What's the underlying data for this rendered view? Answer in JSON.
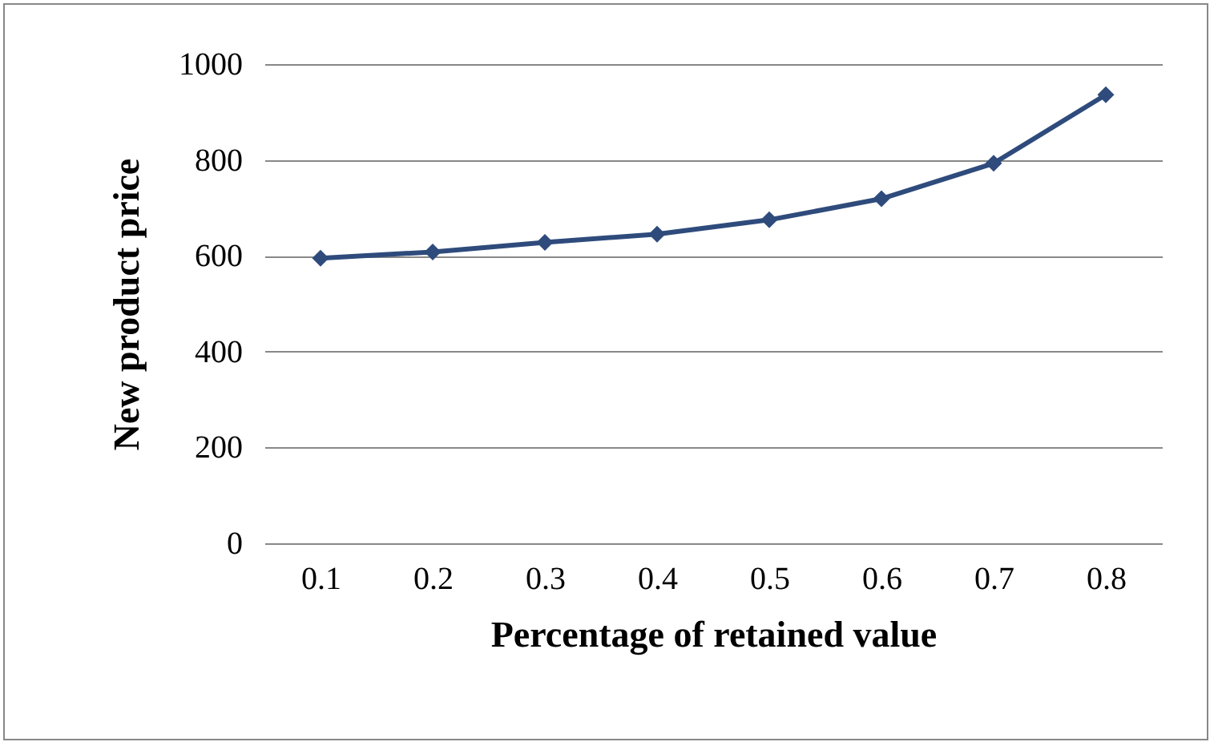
{
  "chart_data": {
    "type": "line",
    "xlabel": "Percentage of retained value",
    "ylabel": "New product price",
    "categories": [
      "0.1",
      "0.2",
      "0.3",
      "0.4",
      "0.5",
      "0.6",
      "0.7",
      "0.8"
    ],
    "series": [
      {
        "color": "#2e4b7c",
        "values": [
          595,
          608,
          628,
          645,
          675,
          719,
          793,
          936
        ]
      }
    ],
    "ylim": [
      0,
      1000
    ],
    "yticks": [
      0,
      200,
      400,
      600,
      800,
      1000
    ],
    "grid": "y",
    "marker": "diamond"
  }
}
